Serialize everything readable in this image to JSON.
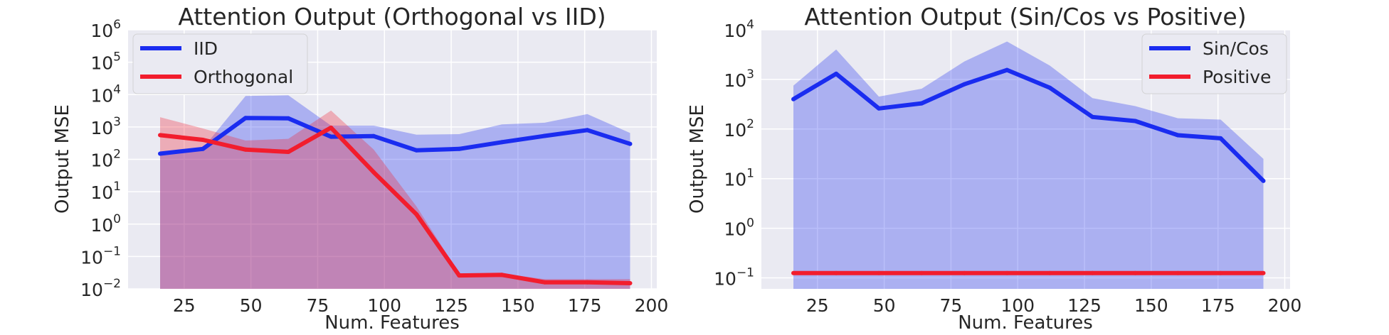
{
  "chart_data": [
    {
      "type": "line",
      "title": "Attention Output (Orthogonal vs IID)",
      "xlabel": "Num. Features",
      "ylabel": "Output MSE",
      "yscale": "log",
      "xlim": [
        4,
        202
      ],
      "ylim": [
        0.01,
        1000000
      ],
      "xticks": [
        25,
        50,
        75,
        100,
        125,
        150,
        175,
        200
      ],
      "yticks": [
        {
          "value": 0.01,
          "base": "10",
          "exp": "−2"
        },
        {
          "value": 0.1,
          "base": "10",
          "exp": "−1"
        },
        {
          "value": 1,
          "base": "10",
          "exp": "0"
        },
        {
          "value": 10,
          "base": "10",
          "exp": "1"
        },
        {
          "value": 100,
          "base": "10",
          "exp": "2"
        },
        {
          "value": 1000,
          "base": "10",
          "exp": "3"
        },
        {
          "value": 10000,
          "base": "10",
          "exp": "4"
        },
        {
          "value": 100000,
          "base": "10",
          "exp": "5"
        },
        {
          "value": 1000000,
          "base": "10",
          "exp": "6"
        }
      ],
      "grid": true,
      "legend": "top-left",
      "series": [
        {
          "name": "IID",
          "color": "#1a2cf0",
          "x": [
            16,
            32,
            48,
            64,
            80,
            96,
            112,
            128,
            144,
            160,
            176,
            192
          ],
          "y": [
            150,
            210,
            1900,
            1850,
            500,
            520,
            190,
            210,
            340,
            530,
            800,
            300
          ],
          "band_upper": [
            160,
            220,
            9000,
            9500,
            1100,
            1100,
            580,
            600,
            1200,
            1350,
            2500,
            650
          ],
          "band_lower": [
            0.01,
            0.01,
            0.01,
            0.01,
            0.01,
            0.01,
            0.01,
            0.01,
            0.01,
            0.01,
            0.01,
            0.01
          ]
        },
        {
          "name": "Orthogonal",
          "color": "#f21d2d",
          "x": [
            16,
            32,
            48,
            64,
            80,
            96,
            112,
            128,
            144,
            160,
            176,
            192
          ],
          "y": [
            560,
            400,
            200,
            170,
            950,
            40,
            2,
            0.026,
            0.027,
            0.016,
            0.016,
            0.015
          ],
          "band_upper": [
            2000,
            900,
            380,
            430,
            3200,
            200,
            3.5,
            0.03,
            0.03,
            0.02,
            0.02,
            0.02
          ],
          "band_lower": [
            0.01,
            0.01,
            0.01,
            0.01,
            0.01,
            0.01,
            0.01,
            0.01,
            0.01,
            0.01,
            0.01,
            0.01
          ]
        }
      ]
    },
    {
      "type": "line",
      "title": "Attention Output (Sin/Cos vs Positive)",
      "xlabel": "Num. Features",
      "ylabel": "Output MSE",
      "yscale": "log",
      "xlim": [
        4,
        202
      ],
      "ylim": [
        0.06,
        10000
      ],
      "xticks": [
        25,
        50,
        75,
        100,
        125,
        150,
        175,
        200
      ],
      "yticks": [
        {
          "value": 0.1,
          "base": "10",
          "exp": "−1"
        },
        {
          "value": 1,
          "base": "10",
          "exp": "0"
        },
        {
          "value": 10,
          "base": "10",
          "exp": "1"
        },
        {
          "value": 100,
          "base": "10",
          "exp": "2"
        },
        {
          "value": 1000,
          "base": "10",
          "exp": "3"
        },
        {
          "value": 10000,
          "base": "10",
          "exp": "4"
        }
      ],
      "grid": true,
      "legend": "top-right",
      "series": [
        {
          "name": "Sin/Cos",
          "color": "#1a2cf0",
          "x": [
            16,
            32,
            48,
            64,
            80,
            96,
            112,
            128,
            144,
            160,
            176,
            192
          ],
          "y": [
            400,
            1300,
            260,
            330,
            800,
            1550,
            680,
            175,
            145,
            75,
            65,
            9
          ],
          "band_upper": [
            750,
            4000,
            450,
            650,
            2300,
            5800,
            1900,
            420,
            290,
            165,
            155,
            25
          ],
          "band_lower": [
            0.06,
            0.06,
            0.06,
            0.06,
            0.06,
            0.06,
            0.06,
            0.06,
            0.06,
            0.06,
            0.06,
            0.06
          ]
        },
        {
          "name": "Positive",
          "color": "#f21d2d",
          "x": [
            16,
            32,
            48,
            64,
            80,
            96,
            112,
            128,
            144,
            160,
            176,
            192
          ],
          "y": [
            0.125,
            0.125,
            0.125,
            0.125,
            0.125,
            0.125,
            0.125,
            0.125,
            0.125,
            0.125,
            0.125,
            0.125
          ],
          "band_upper": [
            0.125,
            0.125,
            0.125,
            0.125,
            0.125,
            0.125,
            0.125,
            0.125,
            0.125,
            0.125,
            0.125,
            0.125
          ],
          "band_lower": [
            0.125,
            0.125,
            0.125,
            0.125,
            0.125,
            0.125,
            0.125,
            0.125,
            0.125,
            0.125,
            0.125,
            0.125
          ]
        }
      ]
    }
  ]
}
